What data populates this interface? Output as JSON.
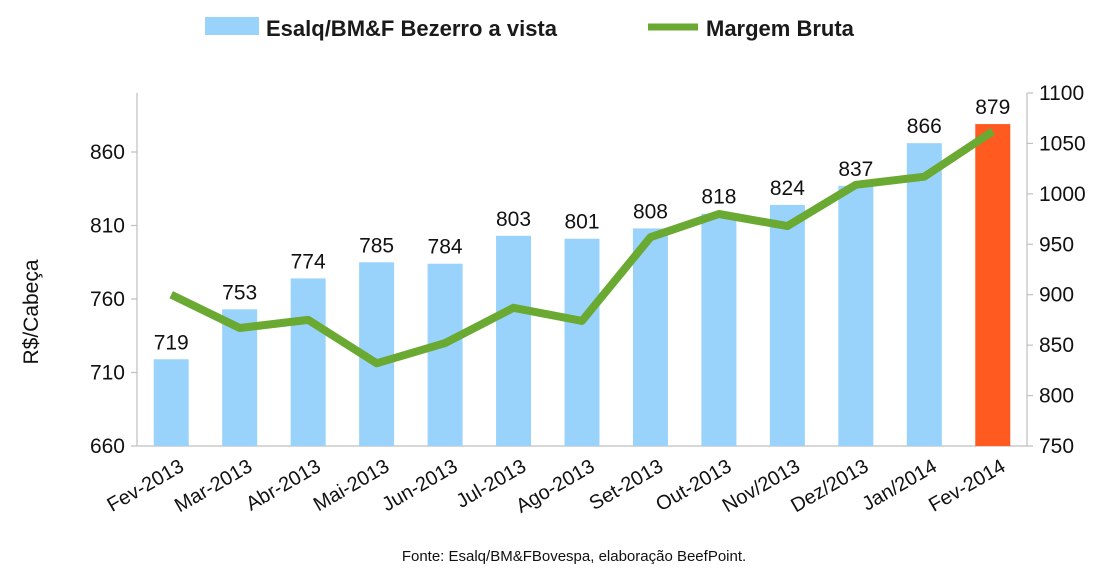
{
  "chart_data": {
    "type": "bar",
    "categories": [
      "Fev-2013",
      "Mar-2013",
      "Abr-2013",
      "Mai-2013",
      "Jun-2013",
      "Jul-2013",
      "Ago-2013",
      "Set-2013",
      "Out-2013",
      "Nov/2013",
      "Dez/2013",
      "Jan/2014",
      "Fev-2014"
    ],
    "series": [
      {
        "name": "Esalq/BM&F Bezerro a vista",
        "kind": "bar",
        "axis": "left",
        "color": "#99d3fb",
        "highlight_color": "#ff5a1f",
        "highlight_index": 12,
        "values": [
          719,
          753,
          774,
          785,
          784,
          803,
          801,
          808,
          818,
          824,
          837,
          866,
          879
        ]
      },
      {
        "name": "Margem Bruta",
        "kind": "line",
        "axis": "right",
        "color": "#6aa932",
        "values": [
          900,
          867,
          875,
          832,
          852,
          887,
          874,
          957,
          980,
          968,
          1009,
          1017,
          1062
        ]
      }
    ],
    "ylabel": "R$/Cabeça",
    "ylim": [
      660,
      900
    ],
    "yticks": [
      660,
      710,
      760,
      810,
      860
    ],
    "y2lim": [
      750,
      1100
    ],
    "y2ticks": [
      750,
      800,
      850,
      900,
      950,
      1000,
      1050,
      1100
    ],
    "legend_position": "top",
    "grid": false,
    "source": "Fonte:  Esalq/BM&FBovespa,  elaboração  BeefPoint."
  }
}
